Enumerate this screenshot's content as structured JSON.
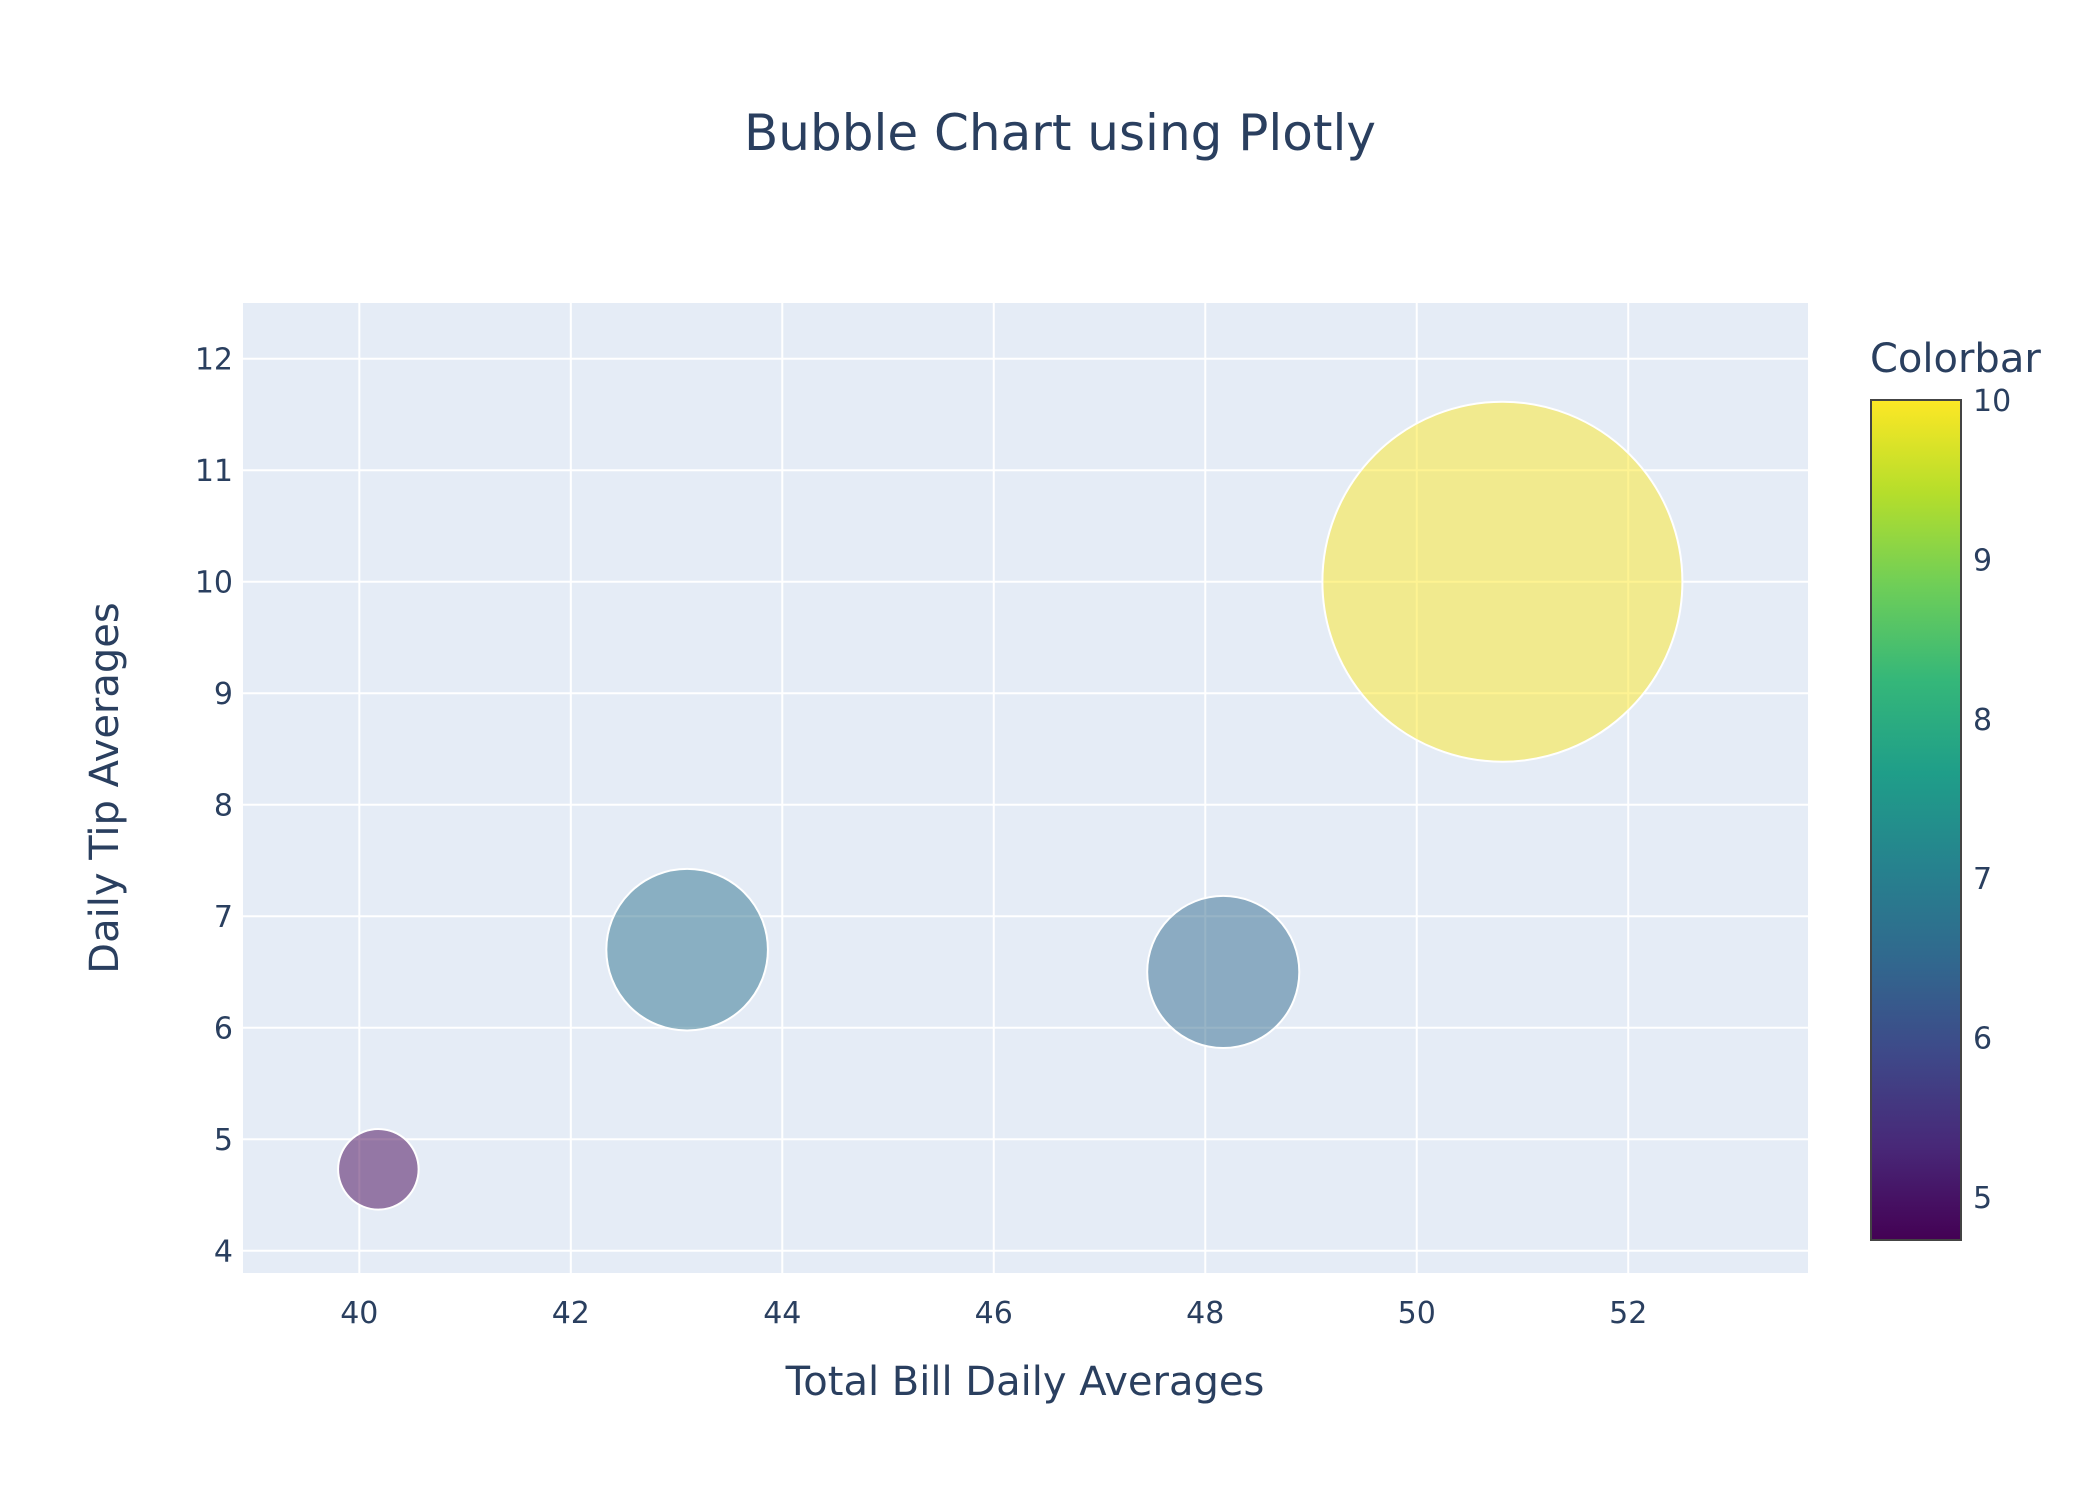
{
  "chart_data": {
    "type": "scatter",
    "title": "Bubble Chart using Plotly",
    "xlabel": "Total Bill Daily Averages",
    "ylabel": "Daily Tip Averages",
    "xlim": [
      38.9,
      53.7
    ],
    "ylim": [
      3.8,
      12.5
    ],
    "xticks": [
      40,
      42,
      44,
      46,
      48,
      50,
      52
    ],
    "yticks": [
      4,
      5,
      6,
      7,
      8,
      9,
      10,
      11,
      12
    ],
    "grid": true,
    "colors": {
      "plot_bg": "#e5ecf6",
      "grid": "#ffffff",
      "text": "#2a3f5f",
      "marker_outline": "#ffffff"
    },
    "marker_opacity": 0.5,
    "colorscale": "Viridis",
    "colorbar": {
      "title": "Colorbar",
      "range": [
        4.73,
        10
      ],
      "ticks": [
        5,
        6,
        7,
        8,
        9,
        10
      ]
    },
    "points": [
      {
        "x": 40.18,
        "y": 4.73,
        "size": 4.73,
        "color": 4.73
      },
      {
        "x": 43.1,
        "y": 6.7,
        "size": 6.7,
        "color": 6.7
      },
      {
        "x": 48.17,
        "y": 6.5,
        "size": 6.5,
        "color": 6.5
      },
      {
        "x": 50.81,
        "y": 10.0,
        "size": 10.0,
        "color": 10.0
      }
    ]
  }
}
